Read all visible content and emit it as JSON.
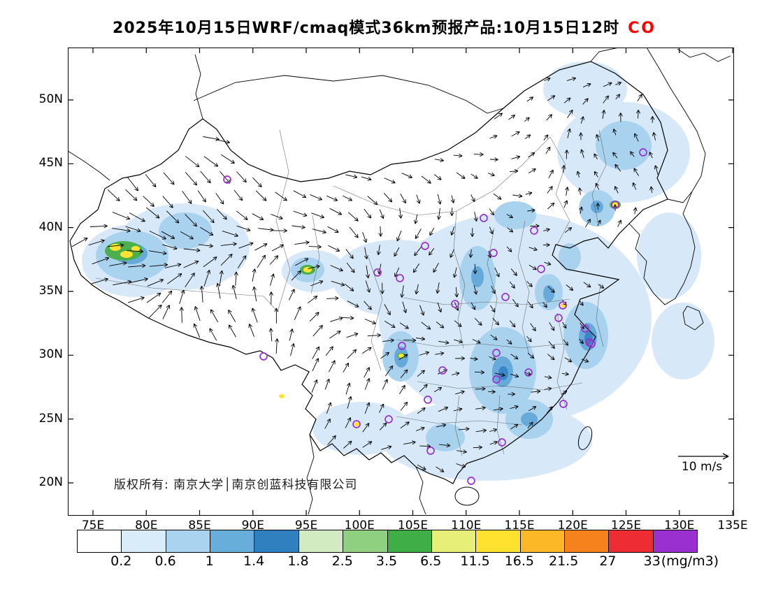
{
  "title": {
    "text": "2025年10月15日WRF/cmaq模式36km预报产品:10月15日12时",
    "species": "CO",
    "species_color": "#ff0000"
  },
  "map": {
    "lat_labels": [
      "50N",
      "45N",
      "40N",
      "35N",
      "30N",
      "25N",
      "20N"
    ],
    "lon_labels": [
      "75E",
      "80E",
      "85E",
      "90E",
      "95E",
      "100E",
      "105E",
      "110E",
      "115E",
      "120E",
      "125E",
      "130E",
      "135E"
    ],
    "copyright": "版权所有: 南京大学│南京创蓝科技有限公司",
    "wind_scale": "10 m/s"
  },
  "colorbar": {
    "tick_labels": [
      "0.2",
      "0.6",
      "1",
      "1.4",
      "1.8",
      "2.5",
      "3.5",
      "6.5",
      "11.5",
      "16.5",
      "21.5",
      "27",
      "33"
    ],
    "levels": [
      0.2,
      0.6,
      1,
      1.4,
      1.8,
      2.5,
      3.5,
      6.5,
      11.5,
      16.5,
      21.5,
      27,
      33
    ],
    "unit": "(mg/m3)",
    "colors": [
      "#ffffff",
      "#d9ecf9",
      "#a9d3ee",
      "#68aeda",
      "#3080c0",
      "#d2ebc0",
      "#8ed07f",
      "#3fae47",
      "#e8ef78",
      "#ffe22f",
      "#fcb826",
      "#f6821e",
      "#ee2c33",
      "#9b30d0"
    ]
  }
}
